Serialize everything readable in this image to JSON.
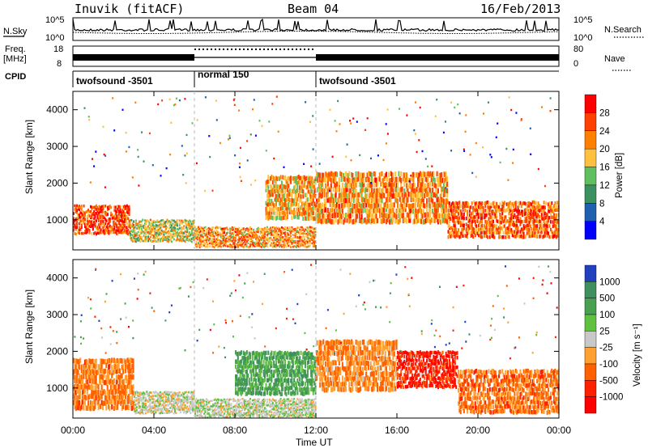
{
  "header": {
    "station": "Inuvik (fitACF)",
    "beam": "Beam 04",
    "date": "16/Feb/2013"
  },
  "sky_panel": {
    "left_label": "N.Sky",
    "ticks_left": [
      "10^5",
      "10^0"
    ],
    "ticks_right": [
      "10^5",
      "10^0"
    ],
    "right_label": "N.Search"
  },
  "freq_panel": {
    "left_label_1": "Freq.",
    "left_label_2": "[MHz]",
    "ticks_left": [
      "18",
      "8"
    ],
    "ticks_right": [
      "80",
      "0"
    ],
    "right_label": "Nave"
  },
  "cpid_panel": {
    "label": "CPID",
    "segments": [
      {
        "name": "twofsound -3501",
        "start_h": 0,
        "end_h": 6
      },
      {
        "name": "normal 150",
        "start_h": 6,
        "end_h": 12
      },
      {
        "name": "twofsound -3501",
        "start_h": 12,
        "end_h": 24
      }
    ]
  },
  "time_axis": {
    "label": "Time UT",
    "ticks": [
      "00:00",
      "04:00",
      "08:00",
      "12:00",
      "16:00",
      "20:00",
      "00:00"
    ]
  },
  "chart_data": [
    {
      "type": "heatmap",
      "name": "power",
      "xlabel": "Time UT",
      "ylabel": "Slant Range [km]",
      "x_range_hours": [
        0,
        24
      ],
      "y_range_km": [
        180,
        4500
      ],
      "yticks": [
        "1000",
        "2000",
        "3000",
        "4000"
      ],
      "colorbar": {
        "label": "Power [dB]",
        "ticks": [
          "28",
          "24",
          "20",
          "16",
          "12",
          "8",
          "4"
        ],
        "colors": [
          "#ff0000",
          "#ff4000",
          "#ff8000",
          "#ffc040",
          "#60c060",
          "#3c9060",
          "#2060b0",
          "#0000ff"
        ],
        "color_label_order": "top_to_bottom"
      },
      "bands": [
        {
          "t0": 0.0,
          "t1": 2.8,
          "r0": 600,
          "r1": 1400,
          "level": 0.85
        },
        {
          "t0": 2.8,
          "t1": 6.0,
          "r0": 400,
          "r1": 1000,
          "level": 0.55
        },
        {
          "t0": 6.0,
          "t1": 12.0,
          "r0": 250,
          "r1": 800,
          "level": 0.7
        },
        {
          "t0": 9.5,
          "t1": 12.0,
          "r0": 1000,
          "r1": 2200,
          "level": 0.65
        },
        {
          "t0": 12.0,
          "t1": 18.5,
          "r0": 900,
          "r1": 2300,
          "level": 0.7
        },
        {
          "t0": 18.5,
          "t1": 24.0,
          "r0": 500,
          "r1": 1500,
          "level": 0.8
        }
      ]
    },
    {
      "type": "heatmap",
      "name": "velocity",
      "xlabel": "Time UT",
      "ylabel": "Slant Range [km]",
      "x_range_hours": [
        0,
        24
      ],
      "y_range_km": [
        180,
        4500
      ],
      "yticks": [
        "1000",
        "2000",
        "3000",
        "4000"
      ],
      "colorbar": {
        "label": "Velocity [m s⁻¹]",
        "ticks": [
          "1000",
          "500",
          "100",
          "25",
          "-25",
          "-100",
          "-500",
          "-1000"
        ],
        "colors": [
          "#2040c0",
          "#3f8f5f",
          "#49a050",
          "#60c040",
          "#c8c8c8",
          "#ffa030",
          "#ff6000",
          "#ff2000",
          "#ff0000"
        ],
        "color_label_order": "top_to_bottom"
      },
      "bands": [
        {
          "t0": 0.0,
          "t1": 3.0,
          "r0": 400,
          "r1": 1800,
          "level": -0.4
        },
        {
          "t0": 3.0,
          "t1": 6.0,
          "r0": 300,
          "r1": 900,
          "level": 0.0
        },
        {
          "t0": 6.0,
          "t1": 12.0,
          "r0": 200,
          "r1": 700,
          "level": 0.05
        },
        {
          "t0": 8.0,
          "t1": 12.0,
          "r0": 800,
          "r1": 2000,
          "level": 0.5
        },
        {
          "t0": 12.0,
          "t1": 16.0,
          "r0": 900,
          "r1": 2300,
          "level": -0.35
        },
        {
          "t0": 16.0,
          "t1": 19.0,
          "r0": 1000,
          "r1": 2000,
          "level": -0.8
        },
        {
          "t0": 19.0,
          "t1": 24.0,
          "r0": 300,
          "r1": 1500,
          "level": -0.45
        }
      ]
    }
  ]
}
